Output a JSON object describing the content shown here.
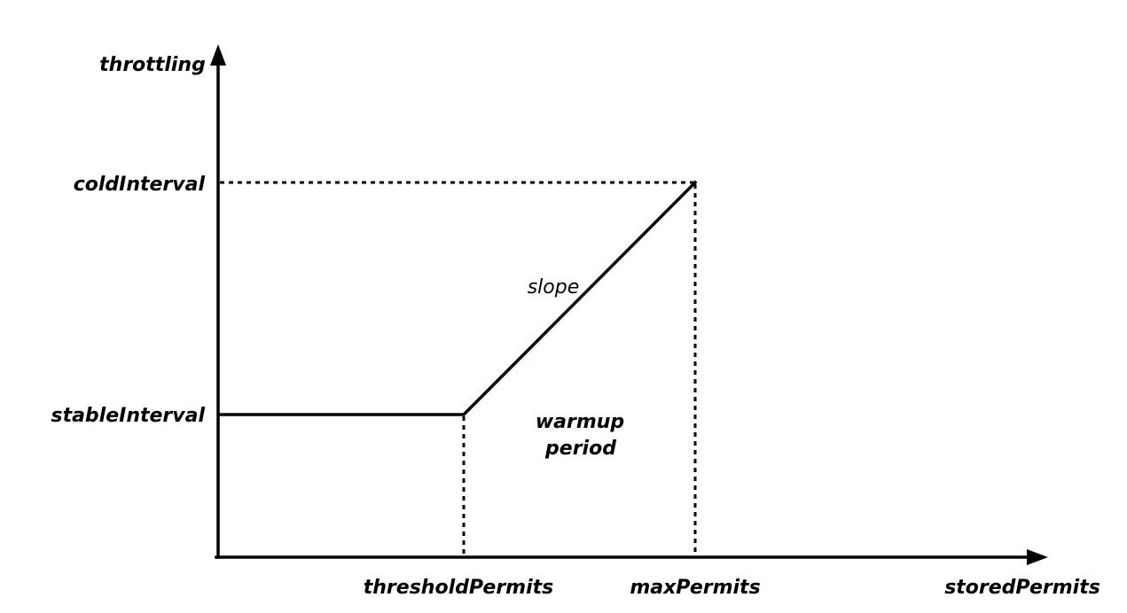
{
  "axes": {
    "y_label": "throttling",
    "x_label": "storedPermits"
  },
  "y_ticks": {
    "cold": "coldInterval",
    "stable": "stableInterval"
  },
  "x_ticks": {
    "threshold": "thresholdPermits",
    "max": "maxPermits"
  },
  "annotations": {
    "slope": "slope",
    "warmup_line1": "warmup",
    "warmup_line2": "period"
  }
}
